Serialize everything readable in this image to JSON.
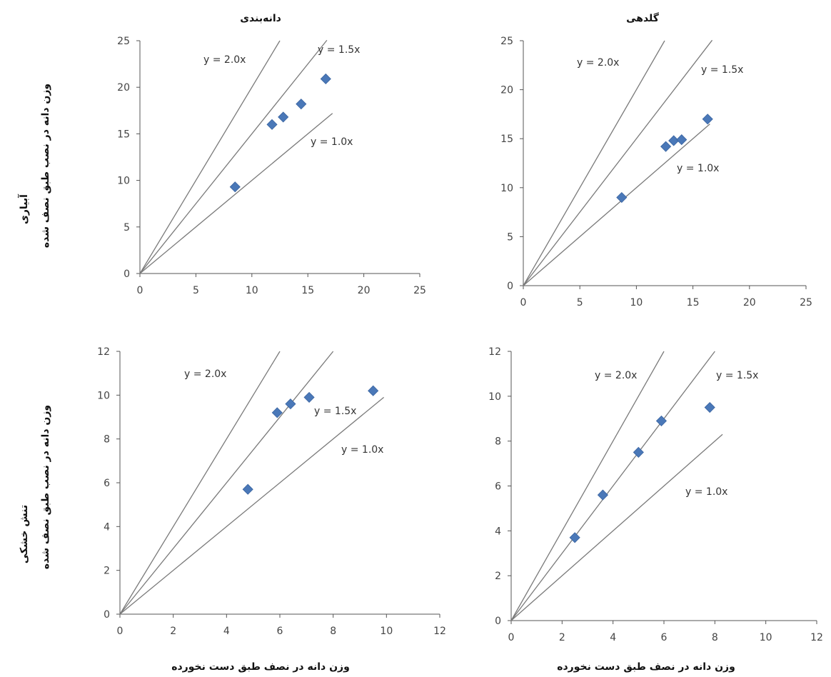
{
  "figure": {
    "column_titles": [
      "دانه‌بندی",
      "گلدهی"
    ],
    "row_labels": [
      "آبیاری",
      "تنش خشکی"
    ],
    "ylabel": "وزن دانه در نصب طبق نصف شده",
    "xlabel": "وزن دانه در نصف طبق دست نخورده"
  },
  "chart_data": [
    {
      "type": "scatter",
      "title": "دانه‌بندی",
      "row": "آبیاری",
      "xlabel": "",
      "ylabel": "وزن دانه در نصب طبق نصف شده",
      "xlim": [
        0,
        25
      ],
      "ylim": [
        0,
        25
      ],
      "xticks": [
        "0",
        "5",
        "10",
        "15",
        "20",
        "25"
      ],
      "yticks": [
        "0",
        "5",
        "10",
        "15",
        "20",
        "25"
      ],
      "series": [
        {
          "marker": "diamond",
          "color": "#4a78b8",
          "x": [
            8.5,
            11.8,
            12.8,
            14.4,
            16.6
          ],
          "y": [
            9.3,
            16.0,
            16.8,
            18.2,
            20.9
          ]
        }
      ],
      "reference_lines": [
        {
          "label": "y = 2.0x",
          "slope": 2.0,
          "x_end": 12.5
        },
        {
          "label": "y = 1.5x",
          "slope": 1.5,
          "x_end": 16.7
        },
        {
          "label": "y = 1.0x",
          "slope": 1.0,
          "x_end": 17.2
        }
      ]
    },
    {
      "type": "scatter",
      "title": "گلدهی",
      "row": "آبیاری",
      "xlabel": "",
      "ylabel": "",
      "xlim": [
        0,
        25
      ],
      "ylim": [
        0,
        25
      ],
      "xticks": [
        "0",
        "5",
        "10",
        "15",
        "20",
        "25"
      ],
      "yticks": [
        "0",
        "5",
        "10",
        "15",
        "20",
        "25"
      ],
      "series": [
        {
          "marker": "diamond",
          "color": "#4a78b8",
          "x": [
            8.7,
            12.6,
            13.3,
            14.0,
            16.3
          ],
          "y": [
            9.0,
            14.2,
            14.8,
            14.9,
            17.0
          ]
        }
      ],
      "reference_lines": [
        {
          "label": "y = 2.0x",
          "slope": 2.0,
          "x_end": 12.5
        },
        {
          "label": "y = 1.5x",
          "slope": 1.5,
          "x_end": 16.7
        },
        {
          "label": "y = 1.0x",
          "slope": 1.0,
          "x_end": 16.5
        }
      ]
    },
    {
      "type": "scatter",
      "title": "",
      "row": "تنش خشکی",
      "xlabel": "وزن دانه در نصف طبق دست نخورده",
      "ylabel": "وزن دانه در نصب طبق نصف شده",
      "xlim": [
        0,
        12
      ],
      "ylim": [
        0,
        12
      ],
      "xticks": [
        "0",
        "2",
        "4",
        "6",
        "8",
        "10",
        "12"
      ],
      "yticks": [
        "0",
        "2",
        "4",
        "6",
        "8",
        "10",
        "12"
      ],
      "series": [
        {
          "marker": "diamond",
          "color": "#4a78b8",
          "x": [
            4.8,
            5.9,
            6.4,
            7.1,
            9.5
          ],
          "y": [
            5.7,
            9.2,
            9.6,
            9.9,
            10.2
          ]
        }
      ],
      "reference_lines": [
        {
          "label": "y = 2.0x",
          "slope": 2.0,
          "x_end": 6.0
        },
        {
          "label": "y = 1.5x",
          "slope": 1.5,
          "x_end": 8.0
        },
        {
          "label": "y = 1.0x",
          "slope": 1.0,
          "x_end": 9.9
        }
      ]
    },
    {
      "type": "scatter",
      "title": "",
      "row": "تنش خشکی",
      "xlabel": "وزن دانه در نصف طبق دست نخورده",
      "ylabel": "",
      "xlim": [
        0,
        12
      ],
      "ylim": [
        0,
        12
      ],
      "xticks": [
        "0",
        "2",
        "4",
        "6",
        "8",
        "10",
        "12"
      ],
      "yticks": [
        "0",
        "2",
        "4",
        "6",
        "8",
        "10",
        "12"
      ],
      "series": [
        {
          "marker": "diamond",
          "color": "#4a78b8",
          "x": [
            2.5,
            3.6,
            5.0,
            5.9,
            7.8
          ],
          "y": [
            3.7,
            5.6,
            7.5,
            8.9,
            9.5
          ]
        }
      ],
      "reference_lines": [
        {
          "label": "y = 2.0x",
          "slope": 2.0,
          "x_end": 6.0
        },
        {
          "label": "y = 1.5x",
          "slope": 1.5,
          "x_end": 8.0
        },
        {
          "label": "y = 1.0x",
          "slope": 1.0,
          "x_end": 8.3
        }
      ]
    }
  ]
}
